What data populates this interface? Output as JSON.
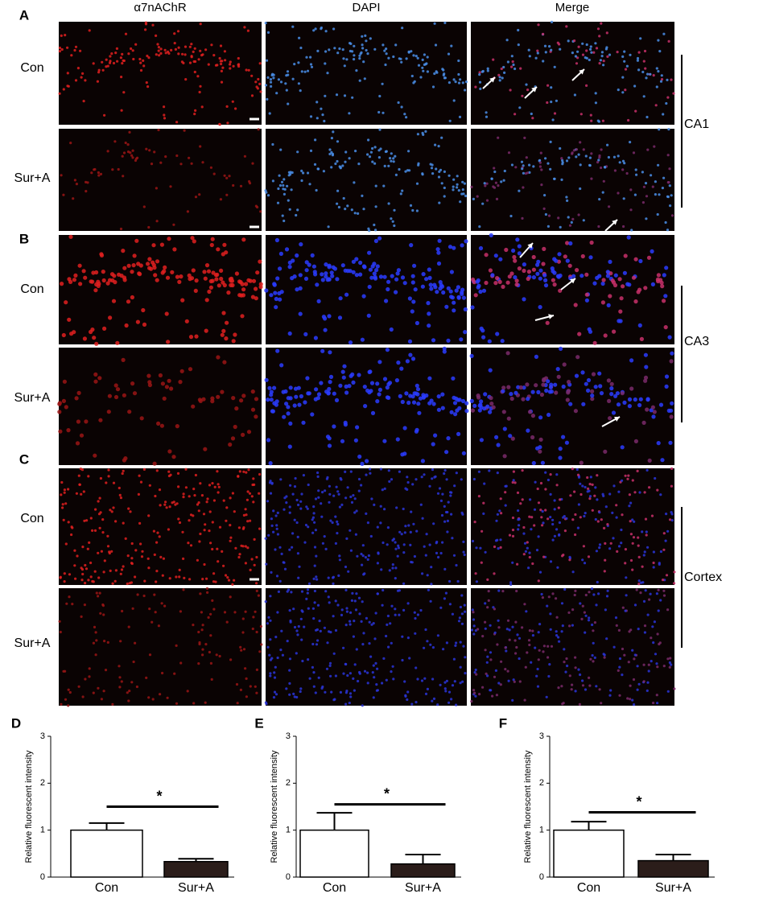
{
  "figure": {
    "column_headers": [
      "α7nAChR",
      "DAPI",
      "Merge"
    ],
    "panels": [
      {
        "label": "A",
        "region": "CA1",
        "rows": [
          "Con",
          "Sur+A"
        ]
      },
      {
        "label": "B",
        "region": "CA3",
        "rows": [
          "Con",
          "Sur+A"
        ]
      },
      {
        "label": "C",
        "region": "Cortex",
        "rows": [
          "Con",
          "Sur+A"
        ]
      }
    ]
  },
  "chart_data": [
    {
      "type": "bar",
      "label": "D",
      "y_label": "Relative fluorescent intensity",
      "categories": [
        "Con",
        "Sur+A"
      ],
      "values": [
        1.0,
        0.33
      ],
      "errors": [
        0.15,
        0.06
      ],
      "colors": [
        "#ffffff",
        "#2b1d1a"
      ],
      "ylim": [
        0,
        3
      ],
      "yticks": [
        0,
        1,
        2,
        3
      ],
      "significance": {
        "label": "*",
        "y": 1.5
      }
    },
    {
      "type": "bar",
      "label": "E",
      "y_label": "Relative fluorescent intensity",
      "categories": [
        "Con",
        "Sur+A"
      ],
      "values": [
        1.0,
        0.28
      ],
      "errors": [
        0.37,
        0.2
      ],
      "colors": [
        "#ffffff",
        "#2b1d1a"
      ],
      "ylim": [
        0,
        3
      ],
      "yticks": [
        0,
        1,
        2,
        3
      ],
      "significance": {
        "label": "*",
        "y": 1.55
      }
    },
    {
      "type": "bar",
      "label": "F",
      "y_label": "Relative fluorescent intensity",
      "categories": [
        "Con",
        "Sur+A"
      ],
      "values": [
        1.0,
        0.35
      ],
      "errors": [
        0.18,
        0.13
      ],
      "colors": [
        "#ffffff",
        "#2b1d1a"
      ],
      "ylim": [
        0,
        3
      ],
      "yticks": [
        0,
        1,
        2,
        3
      ],
      "significance": {
        "label": "*",
        "y": 1.38
      }
    }
  ]
}
